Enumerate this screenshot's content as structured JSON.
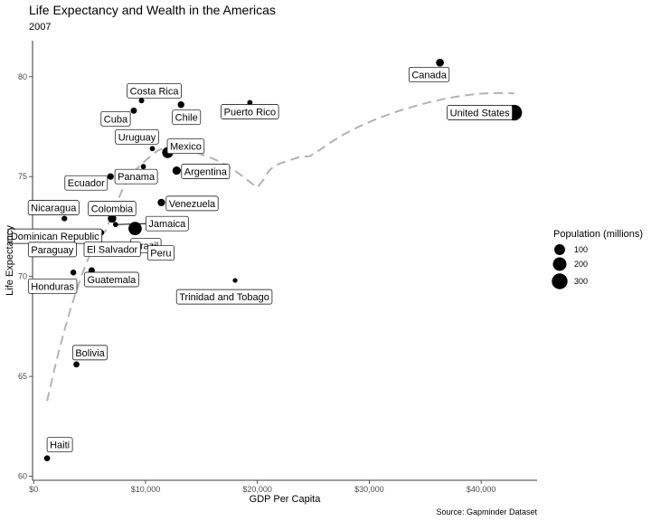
{
  "chart_data": {
    "type": "scatter",
    "title": "Life Expectancy and Wealth in the Americas",
    "subtitle": "2007",
    "xlabel": "GDP Per Capita",
    "ylabel": "Life Expectancy",
    "caption": "Source: Gapminder Dataset",
    "xlim": [
      -100,
      45000
    ],
    "ylim": [
      59.8,
      81.8
    ],
    "xticks": [
      0,
      10000,
      20000,
      30000,
      40000
    ],
    "xtick_labels": [
      "$0",
      "$10,000",
      "$20,000",
      "$30,000",
      "$40,000"
    ],
    "yticks": [
      60,
      65,
      70,
      75,
      80
    ],
    "ytick_labels": [
      "60",
      "65",
      "70",
      "75",
      "80"
    ],
    "grid": false,
    "legend": {
      "title": "Population (millions)",
      "placement": "right",
      "entries": [
        {
          "label": "100",
          "value": 100
        },
        {
          "label": "200",
          "value": 200
        },
        {
          "label": "300",
          "value": 300
        }
      ]
    },
    "trend": {
      "style": "dashed",
      "color": "#b3b3b3",
      "kind": "loess"
    },
    "points": [
      {
        "country": "Argentina",
        "gdp": 12779,
        "lifeExp": 75.3,
        "pop": 40.3
      },
      {
        "country": "Bolivia",
        "gdp": 3822,
        "lifeExp": 65.6,
        "pop": 9.1
      },
      {
        "country": "Brazil",
        "gdp": 9066,
        "lifeExp": 72.4,
        "pop": 190.0
      },
      {
        "country": "Canada",
        "gdp": 36319,
        "lifeExp": 80.7,
        "pop": 33.4
      },
      {
        "country": "Chile",
        "gdp": 13172,
        "lifeExp": 78.6,
        "pop": 16.3
      },
      {
        "country": "Colombia",
        "gdp": 7007,
        "lifeExp": 72.9,
        "pop": 44.2
      },
      {
        "country": "Costa Rica",
        "gdp": 9645,
        "lifeExp": 78.8,
        "pop": 4.1
      },
      {
        "country": "Cuba",
        "gdp": 8948,
        "lifeExp": 78.3,
        "pop": 11.4
      },
      {
        "country": "Dominican Republic",
        "gdp": 6025,
        "lifeExp": 72.2,
        "pop": 9.3
      },
      {
        "country": "Ecuador",
        "gdp": 6873,
        "lifeExp": 75.0,
        "pop": 13.8
      },
      {
        "country": "El Salvador",
        "gdp": 5728,
        "lifeExp": 71.9,
        "pop": 6.9
      },
      {
        "country": "Guatemala",
        "gdp": 5186,
        "lifeExp": 70.3,
        "pop": 12.6
      },
      {
        "country": "Haiti",
        "gdp": 1202,
        "lifeExp": 60.9,
        "pop": 8.5
      },
      {
        "country": "Honduras",
        "gdp": 3548,
        "lifeExp": 70.2,
        "pop": 7.5
      },
      {
        "country": "Jamaica",
        "gdp": 7321,
        "lifeExp": 72.6,
        "pop": 2.8
      },
      {
        "country": "Mexico",
        "gdp": 11978,
        "lifeExp": 76.2,
        "pop": 108.7
      },
      {
        "country": "Nicaragua",
        "gdp": 2749,
        "lifeExp": 72.9,
        "pop": 5.7
      },
      {
        "country": "Panama",
        "gdp": 9809,
        "lifeExp": 75.5,
        "pop": 3.2
      },
      {
        "country": "Paraguay",
        "gdp": 4173,
        "lifeExp": 71.8,
        "pop": 6.7
      },
      {
        "country": "Peru",
        "gdp": 7409,
        "lifeExp": 71.4,
        "pop": 28.7
      },
      {
        "country": "Puerto Rico",
        "gdp": 19329,
        "lifeExp": 78.7,
        "pop": 3.9
      },
      {
        "country": "Trinidad and Tobago",
        "gdp": 18009,
        "lifeExp": 69.8,
        "pop": 1.1
      },
      {
        "country": "United States",
        "gdp": 42952,
        "lifeExp": 78.2,
        "pop": 301.1
      },
      {
        "country": "Uruguay",
        "gdp": 10611,
        "lifeExp": 76.4,
        "pop": 3.4
      },
      {
        "country": "Venezuela",
        "gdp": 11416,
        "lifeExp": 73.7,
        "pop": 26.1
      }
    ]
  }
}
